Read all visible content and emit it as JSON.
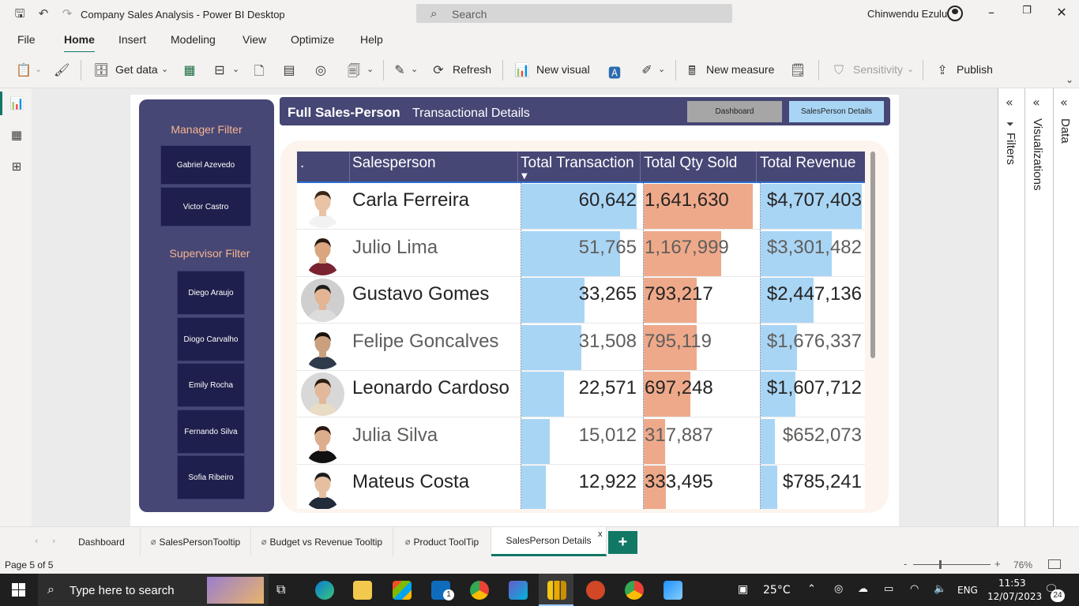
{
  "titlebar": {
    "title": "Company Sales Analysis - Power BI Desktop",
    "search_placeholder": "Search",
    "user": "Chinwendu Ezulu"
  },
  "menu": [
    "File",
    "Home",
    "Insert",
    "Modeling",
    "View",
    "Optimize",
    "Help"
  ],
  "ribbon": {
    "get_data": "Get data",
    "refresh": "Refresh",
    "new_visual": "New visual",
    "new_measure": "New measure",
    "sensitivity": "Sensitivity",
    "publish": "Publish"
  },
  "slicers": {
    "manager_title": "Manager Filter",
    "managers": [
      "Gabriel Azevedo",
      "Victor Castro"
    ],
    "supervisor_title": "Supervisor Filter",
    "supervisors": [
      "Diego Araujo",
      "Diogo Carvalho",
      "Emily Rocha",
      "Fernando Silva",
      "Sofia Ribeiro"
    ]
  },
  "header": {
    "title_bold": "Full Sales-Person",
    "title_rest": "Transactional Details",
    "nav_dashboard": "Dashboard",
    "nav_details": "SalesPerson Details"
  },
  "table": {
    "columns": [
      ".",
      "Salesperson",
      "Total Transaction",
      "Total Qty Sold",
      "Total Revenue"
    ],
    "rows": [
      {
        "name": "Carla Ferreira",
        "transaction": "60,642",
        "qty": "1,641,630",
        "revenue": "$4,707,403",
        "t": 60642,
        "q": 1641630,
        "r": 4707403
      },
      {
        "name": "Julio Lima",
        "transaction": "51,765",
        "qty": "1,167,999",
        "revenue": "$3,301,482",
        "t": 51765,
        "q": 1167999,
        "r": 3301482
      },
      {
        "name": "Gustavo Gomes",
        "transaction": "33,265",
        "qty": "793,217",
        "revenue": "$2,447,136",
        "t": 33265,
        "q": 793217,
        "r": 2447136
      },
      {
        "name": "Felipe Goncalves",
        "transaction": "31,508",
        "qty": "795,119",
        "revenue": "$1,676,337",
        "t": 31508,
        "q": 795119,
        "r": 1676337
      },
      {
        "name": "Leonardo Cardoso",
        "transaction": "22,571",
        "qty": "697,248",
        "revenue": "$1,607,712",
        "t": 22571,
        "q": 697248,
        "r": 1607712
      },
      {
        "name": "Julia Silva",
        "transaction": "15,012",
        "qty": "317,887",
        "revenue": "$652,073",
        "t": 15012,
        "q": 317887,
        "r": 652073
      },
      {
        "name": "Mateus Costa",
        "transaction": "12,922",
        "qty": "333,495",
        "revenue": "$785,241",
        "t": 12922,
        "q": 333495,
        "r": 785241
      }
    ]
  },
  "panes": {
    "filters": "Filters",
    "visualizations": "Visualizations",
    "data": "Data"
  },
  "page_tabs": [
    "Dashboard",
    "SalesPersonTooltip",
    "Budget vs Revenue Tooltip",
    "Product ToolTip",
    "SalesPerson Details"
  ],
  "status": {
    "page": "Page 5 of 5",
    "zoom": "76%"
  },
  "taskbar": {
    "search_placeholder": "Type here to search",
    "weather": "25°C",
    "lang": "ENG",
    "time": "11:53",
    "date": "12/07/2023",
    "notifications": "24",
    "mail_badge": "1"
  },
  "colors": {
    "accent": "#117865",
    "navy": "#464775",
    "transaction_bar": "#a9d5f5",
    "qty_bar": "#eea98a",
    "revenue_bar": "#a9d5f5",
    "slicer_title": "#f6b58f"
  }
}
